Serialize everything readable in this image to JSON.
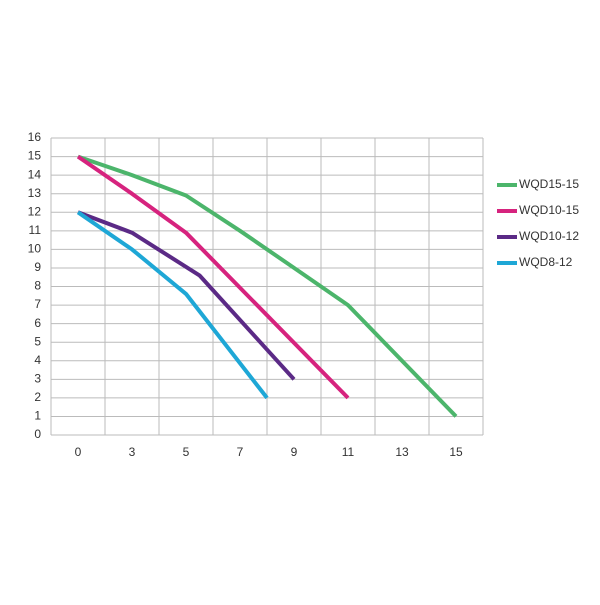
{
  "chart_data": {
    "type": "line",
    "xlim": [
      0,
      15
    ],
    "xticks": [
      0,
      3,
      5,
      7,
      9,
      11,
      13,
      15
    ],
    "ylim": [
      0,
      16
    ],
    "yticks": [
      0,
      1,
      2,
      3,
      4,
      5,
      6,
      7,
      8,
      9,
      10,
      11,
      12,
      13,
      14,
      15,
      16
    ],
    "grid": true,
    "legend": "right",
    "series": [
      {
        "name": "WQD15-15",
        "color": "#4cb56b",
        "x": [
          0,
          3,
          5,
          7,
          9,
          11,
          15
        ],
        "values": [
          15,
          14,
          12.9,
          11,
          9,
          7,
          1
        ]
      },
      {
        "name": "WQD10-15",
        "color": "#d6237e",
        "x": [
          0,
          3,
          5,
          11
        ],
        "values": [
          15,
          13,
          10.9,
          2
        ]
      },
      {
        "name": "WQD10-12",
        "color": "#5b2a86",
        "x": [
          0,
          3,
          5.5,
          9
        ],
        "values": [
          12,
          10.9,
          8.6,
          3
        ]
      },
      {
        "name": "WQD8-12",
        "color": "#1ea7d6",
        "x": [
          0,
          3,
          5,
          8
        ],
        "values": [
          12,
          10,
          7.6,
          2
        ]
      }
    ]
  }
}
